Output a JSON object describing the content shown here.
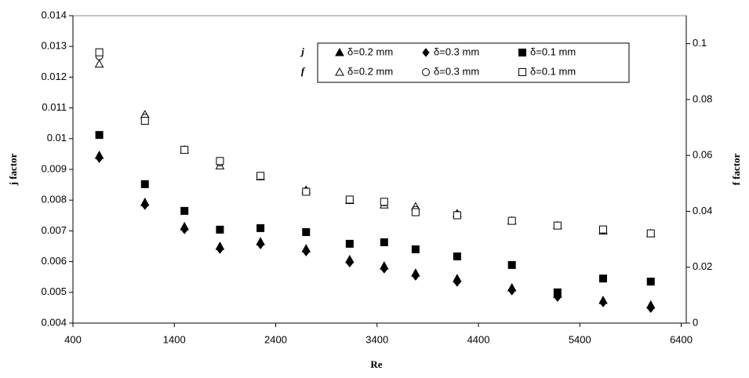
{
  "chart_data": {
    "type": "scatter",
    "x_label": "Re",
    "y_label": "j factor",
    "y2_label": "f factor",
    "legend_rows": [
      "j",
      "f"
    ],
    "x": [
      660,
      1110,
      1500,
      1850,
      2250,
      2700,
      3130,
      3470,
      3780,
      4190,
      4730,
      5180,
      5630,
      6100
    ],
    "xlim": [
      400,
      6450
    ],
    "xticks": [
      400,
      1400,
      2400,
      3400,
      4400,
      5400,
      6400
    ],
    "ylim": [
      0.004,
      0.014
    ],
    "yticks": [
      0.004,
      0.005,
      0.006,
      0.007,
      0.008,
      0.009,
      0.01,
      0.011,
      0.012,
      0.013,
      0.014
    ],
    "y2lim": [
      0,
      0.11
    ],
    "y2ticks": [
      0,
      0.02,
      0.04,
      0.06,
      0.08,
      0.1
    ],
    "series": [
      {
        "name": "δ=0.2 mm",
        "color": "#000000",
        "marker": "triangle",
        "filled": true,
        "axis": "y",
        "values": [
          0.00946,
          0.00793,
          0.00714,
          0.0065,
          0.00665,
          0.00642,
          0.00607,
          0.00586,
          0.00563,
          0.00545,
          0.00515,
          0.00494,
          0.00474,
          0.00459
        ]
      },
      {
        "name": "δ=0.3 mm",
        "color": "#000000",
        "marker": "diamond",
        "filled": true,
        "axis": "y",
        "values": [
          0.00936,
          0.00783,
          0.00704,
          0.0064,
          0.00655,
          0.00632,
          0.00596,
          0.00576,
          0.00553,
          0.00533,
          0.00505,
          0.00484,
          0.00466,
          0.00448
        ]
      },
      {
        "name": "δ=0.1 mm",
        "color": "#000000",
        "marker": "square",
        "filled": true,
        "axis": "y",
        "values": [
          0.01012,
          0.00852,
          0.00765,
          0.00704,
          0.00709,
          0.00696,
          0.00658,
          0.00663,
          0.0064,
          0.00617,
          0.00589,
          0.005,
          0.00545,
          0.00535
        ]
      },
      {
        "name": "δ=0.2 mm",
        "color": "#000000",
        "marker": "triangle",
        "filled": false,
        "axis": "y2",
        "values": [
          0.0927,
          0.0746,
          0.062,
          0.0563,
          0.0524,
          0.0476,
          0.0439,
          0.0423,
          0.0417,
          0.0392,
          0.0366,
          0.0349,
          0.033,
          0.0321
        ]
      },
      {
        "name": "δ=0.3 mm",
        "color": "#000000",
        "marker": "circle",
        "filled": false,
        "axis": "y2",
        "values": [
          0.0955,
          0.0735,
          0.062,
          0.0575,
          0.0525,
          0.0472,
          0.044,
          0.0432,
          0.0405,
          0.0388,
          0.0366,
          0.0349,
          0.0333,
          0.0321
        ]
      },
      {
        "name": "δ=0.1 mm",
        "color": "#000000",
        "marker": "square",
        "filled": false,
        "axis": "y2",
        "values": [
          0.0969,
          0.0724,
          0.062,
          0.058,
          0.0527,
          0.047,
          0.0442,
          0.0434,
          0.0397,
          0.0386,
          0.0366,
          0.0349,
          0.0335,
          0.0321
        ]
      }
    ]
  }
}
